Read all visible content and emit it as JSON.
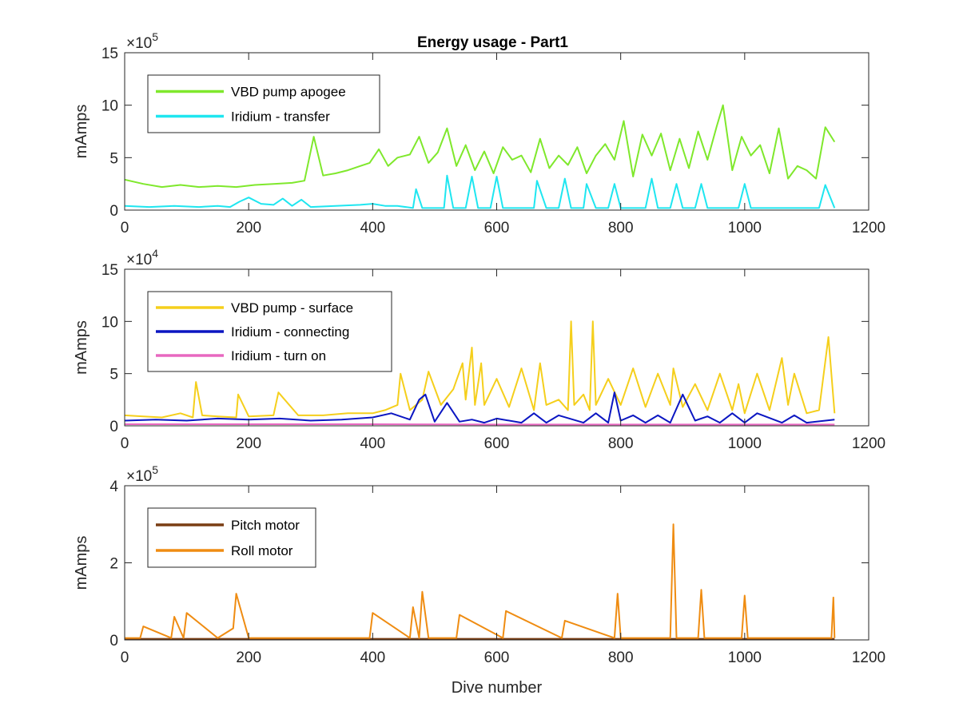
{
  "chart_data": [
    {
      "type": "line",
      "title": "Energy usage - Part1",
      "xlabel": "",
      "ylabel": "mAmps",
      "xlim": [
        0,
        1200
      ],
      "ylim": [
        0,
        1500000
      ],
      "exponent": {
        "base": "×10",
        "power": "5"
      },
      "xticks": [
        "0",
        "200",
        "400",
        "600",
        "800",
        "1000",
        "1200"
      ],
      "yticks": [
        "0",
        "5",
        "10",
        "15"
      ],
      "legend_position": "top-left",
      "series": [
        {
          "name": "VBD pump apogee",
          "color": "#7fe82c",
          "x": [
            0,
            30,
            60,
            90,
            120,
            150,
            180,
            210,
            240,
            270,
            290,
            305,
            320,
            340,
            360,
            380,
            395,
            410,
            425,
            440,
            460,
            475,
            490,
            505,
            520,
            535,
            550,
            565,
            580,
            595,
            610,
            625,
            640,
            655,
            670,
            685,
            700,
            715,
            730,
            745,
            760,
            775,
            790,
            805,
            820,
            835,
            850,
            865,
            880,
            895,
            910,
            925,
            940,
            955,
            965,
            980,
            995,
            1010,
            1025,
            1040,
            1055,
            1070,
            1085,
            1100,
            1115,
            1130,
            1145
          ],
          "values": [
            290000,
            250000,
            220000,
            240000,
            220000,
            230000,
            220000,
            240000,
            250000,
            260000,
            280000,
            700000,
            330000,
            350000,
            380000,
            420000,
            450000,
            580000,
            420000,
            500000,
            530000,
            700000,
            450000,
            550000,
            780000,
            420000,
            620000,
            380000,
            560000,
            350000,
            600000,
            480000,
            520000,
            360000,
            680000,
            400000,
            520000,
            430000,
            600000,
            350000,
            520000,
            630000,
            480000,
            850000,
            320000,
            720000,
            520000,
            730000,
            380000,
            680000,
            400000,
            750000,
            480000,
            800000,
            1000000,
            380000,
            700000,
            520000,
            620000,
            350000,
            780000,
            300000,
            420000,
            380000,
            300000,
            790000,
            650000
          ]
        },
        {
          "name": "Iridium - transfer",
          "color": "#1fe6f0",
          "x": [
            0,
            40,
            80,
            120,
            150,
            170,
            185,
            200,
            220,
            240,
            255,
            270,
            285,
            300,
            340,
            380,
            400,
            420,
            440,
            465,
            470,
            480,
            500,
            515,
            520,
            530,
            550,
            560,
            570,
            590,
            600,
            610,
            630,
            660,
            665,
            680,
            700,
            710,
            720,
            740,
            745,
            760,
            780,
            790,
            800,
            820,
            840,
            850,
            860,
            880,
            890,
            900,
            920,
            930,
            940,
            960,
            975,
            990,
            1000,
            1010,
            1040,
            1060,
            1080,
            1100,
            1120,
            1130,
            1145
          ],
          "values": [
            40000,
            30000,
            40000,
            30000,
            40000,
            30000,
            80000,
            120000,
            60000,
            50000,
            110000,
            40000,
            100000,
            30000,
            40000,
            50000,
            60000,
            40000,
            40000,
            20000,
            200000,
            20000,
            20000,
            20000,
            330000,
            20000,
            20000,
            320000,
            20000,
            20000,
            320000,
            20000,
            20000,
            20000,
            280000,
            20000,
            20000,
            300000,
            20000,
            20000,
            250000,
            20000,
            20000,
            250000,
            20000,
            20000,
            20000,
            300000,
            20000,
            20000,
            250000,
            20000,
            20000,
            250000,
            20000,
            20000,
            20000,
            20000,
            250000,
            20000,
            20000,
            20000,
            20000,
            20000,
            20000,
            240000,
            20000
          ]
        }
      ]
    },
    {
      "type": "line",
      "title": "",
      "xlabel": "",
      "ylabel": "mAmps",
      "xlim": [
        0,
        1200
      ],
      "ylim": [
        0,
        150000
      ],
      "exponent": {
        "base": "×10",
        "power": "4"
      },
      "xticks": [
        "0",
        "200",
        "400",
        "600",
        "800",
        "1000",
        "1200"
      ],
      "yticks": [
        "0",
        "5",
        "10",
        "15"
      ],
      "legend_position": "top-left",
      "series": [
        {
          "name": "VBD pump - surface",
          "color": "#f5cf1c",
          "x": [
            0,
            30,
            60,
            90,
            110,
            115,
            125,
            150,
            180,
            183,
            200,
            240,
            248,
            280,
            320,
            360,
            400,
            420,
            440,
            445,
            460,
            480,
            490,
            510,
            530,
            545,
            550,
            560,
            565,
            575,
            580,
            600,
            620,
            640,
            660,
            670,
            680,
            700,
            715,
            720,
            725,
            740,
            750,
            755,
            760,
            780,
            800,
            820,
            840,
            860,
            880,
            885,
            900,
            920,
            940,
            960,
            980,
            990,
            1000,
            1020,
            1040,
            1060,
            1070,
            1080,
            1100,
            1120,
            1135,
            1145
          ],
          "values": [
            10000,
            9000,
            8000,
            12000,
            8000,
            42000,
            10000,
            9000,
            8000,
            30000,
            9000,
            10000,
            32000,
            10000,
            10000,
            12000,
            12000,
            15000,
            20000,
            50000,
            15000,
            25000,
            52000,
            20000,
            35000,
            60000,
            25000,
            75000,
            20000,
            60000,
            20000,
            45000,
            18000,
            55000,
            15000,
            60000,
            20000,
            25000,
            15000,
            100000,
            20000,
            30000,
            15000,
            100000,
            20000,
            45000,
            20000,
            55000,
            18000,
            50000,
            20000,
            55000,
            18000,
            40000,
            15000,
            50000,
            15000,
            40000,
            12000,
            50000,
            15000,
            65000,
            20000,
            50000,
            12000,
            15000,
            85000,
            12000
          ]
        },
        {
          "name": "Iridium - connecting",
          "color": "#0b16c2",
          "x": [
            0,
            50,
            100,
            150,
            200,
            250,
            300,
            350,
            400,
            430,
            460,
            475,
            485,
            500,
            520,
            540,
            560,
            580,
            600,
            640,
            660,
            680,
            700,
            740,
            760,
            780,
            790,
            800,
            820,
            840,
            860,
            880,
            900,
            920,
            940,
            960,
            980,
            1000,
            1020,
            1060,
            1080,
            1100,
            1145
          ],
          "values": [
            5000,
            6000,
            5000,
            7000,
            6000,
            7000,
            5000,
            6000,
            8000,
            12000,
            6000,
            25000,
            30000,
            4000,
            22000,
            4000,
            6000,
            3000,
            7000,
            3000,
            12000,
            3000,
            10000,
            3000,
            12000,
            3000,
            32000,
            5000,
            10000,
            3000,
            10000,
            3000,
            30000,
            5000,
            9000,
            3000,
            12000,
            3000,
            12000,
            3000,
            10000,
            3000,
            6000
          ]
        },
        {
          "name": "Iridium - turn on",
          "color": "#e868c0",
          "x": [
            0,
            200,
            400,
            600,
            800,
            1000,
            1145
          ],
          "values": [
            1500,
            1500,
            1500,
            1200,
            1200,
            1200,
            1200
          ]
        }
      ]
    },
    {
      "type": "line",
      "title": "",
      "xlabel": "Dive number",
      "ylabel": "mAmps",
      "xlim": [
        0,
        1200
      ],
      "ylim": [
        0,
        400000
      ],
      "exponent": {
        "base": "×10",
        "power": "5"
      },
      "xticks": [
        "0",
        "200",
        "400",
        "600",
        "800",
        "1000",
        "1200"
      ],
      "yticks": [
        "0",
        "2",
        "4"
      ],
      "legend_position": "top-left",
      "series": [
        {
          "name": "Pitch motor",
          "color": "#7a3e14",
          "x": [
            0,
            200,
            400,
            600,
            800,
            1000,
            1145
          ],
          "values": [
            3000,
            3000,
            3000,
            3000,
            3000,
            3000,
            3000
          ]
        },
        {
          "name": "Roll motor",
          "color": "#ef8c12",
          "x": [
            0,
            25,
            30,
            75,
            80,
            95,
            100,
            150,
            175,
            180,
            200,
            395,
            400,
            460,
            465,
            475,
            480,
            490,
            535,
            540,
            610,
            615,
            705,
            710,
            790,
            795,
            800,
            880,
            885,
            890,
            925,
            930,
            935,
            995,
            1000,
            1005,
            1140,
            1143,
            1145
          ],
          "values": [
            5000,
            5000,
            35000,
            5000,
            60000,
            5000,
            70000,
            5000,
            30000,
            120000,
            5000,
            5000,
            70000,
            5000,
            85000,
            5000,
            125000,
            5000,
            5000,
            65000,
            5000,
            75000,
            5000,
            50000,
            5000,
            120000,
            5000,
            5000,
            300000,
            5000,
            5000,
            130000,
            5000,
            5000,
            115000,
            5000,
            5000,
            110000,
            5000
          ]
        }
      ]
    }
  ]
}
